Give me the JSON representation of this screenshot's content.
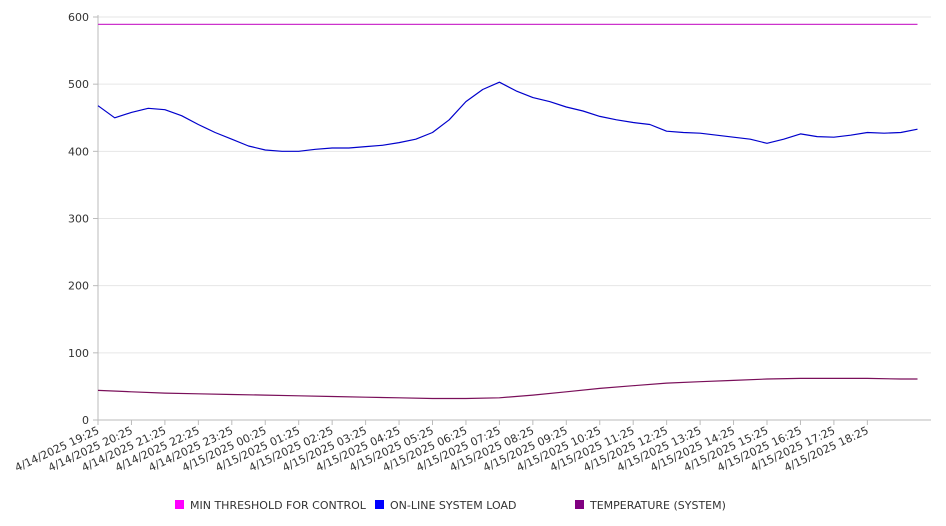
{
  "chart_data": {
    "type": "line",
    "title": "",
    "xlabel": "",
    "ylabel": "",
    "ylim": [
      0,
      600
    ],
    "yticks": [
      0,
      100,
      200,
      300,
      400,
      500,
      600
    ],
    "grid": true,
    "legend_position": "bottom",
    "categories": [
      "4/14/2025 19:25",
      "4/14/2025 20:25",
      "4/14/2025 21:25",
      "4/14/2025 22:25",
      "4/14/2025 23:25",
      "4/15/2025 00:25",
      "4/15/2025 01:25",
      "4/15/2025 02:25",
      "4/15/2025 03:25",
      "4/15/2025 04:25",
      "4/15/2025 05:25",
      "4/15/2025 06:25",
      "4/15/2025 07:25",
      "4/15/2025 08:25",
      "4/15/2025 09:25",
      "4/15/2025 10:25",
      "4/15/2025 11:25",
      "4/15/2025 12:25",
      "4/15/2025 13:25",
      "4/15/2025 14:25",
      "4/15/2025 15:25",
      "4/15/2025 16:25",
      "4/15/2025 17:25",
      "4/15/2025 18:25"
    ],
    "series": [
      {
        "name": "MIN THRESHOLD FOR CONTROL",
        "color": "#cc33cc",
        "legend_color": "#ff00ff",
        "x": [
          "4/14/2025 19:25",
          "4/15/2025 19:55"
        ],
        "values": [
          589,
          589
        ]
      },
      {
        "name": "ON-LINE SYSTEM LOAD",
        "color": "#0000cc",
        "legend_color": "#0000ff",
        "x": [
          "4/14/2025 19:25",
          "4/14/2025 19:55",
          "4/14/2025 20:25",
          "4/14/2025 20:55",
          "4/14/2025 21:25",
          "4/14/2025 21:55",
          "4/14/2025 22:25",
          "4/14/2025 22:55",
          "4/14/2025 23:25",
          "4/14/2025 23:55",
          "4/15/2025 00:25",
          "4/15/2025 00:55",
          "4/15/2025 01:25",
          "4/15/2025 01:55",
          "4/15/2025 02:25",
          "4/15/2025 02:55",
          "4/15/2025 03:25",
          "4/15/2025 03:55",
          "4/15/2025 04:25",
          "4/15/2025 04:55",
          "4/15/2025 05:25",
          "4/15/2025 05:55",
          "4/15/2025 06:25",
          "4/15/2025 06:55",
          "4/15/2025 07:25",
          "4/15/2025 07:55",
          "4/15/2025 08:25",
          "4/15/2025 08:55",
          "4/15/2025 09:25",
          "4/15/2025 09:55",
          "4/15/2025 10:25",
          "4/15/2025 10:55",
          "4/15/2025 11:25",
          "4/15/2025 11:55",
          "4/15/2025 12:25",
          "4/15/2025 12:55",
          "4/15/2025 13:25",
          "4/15/2025 13:55",
          "4/15/2025 14:25",
          "4/15/2025 14:55",
          "4/15/2025 15:25",
          "4/15/2025 15:55",
          "4/15/2025 16:25",
          "4/15/2025 16:55",
          "4/15/2025 17:25",
          "4/15/2025 17:55",
          "4/15/2025 18:25",
          "4/15/2025 18:55",
          "4/15/2025 19:25",
          "4/15/2025 19:55"
        ],
        "values": [
          468,
          450,
          458,
          464,
          462,
          453,
          440,
          428,
          418,
          408,
          402,
          400,
          400,
          403,
          405,
          405,
          407,
          409,
          413,
          418,
          428,
          447,
          474,
          492,
          503,
          490,
          480,
          474,
          466,
          460,
          452,
          447,
          443,
          440,
          430,
          428,
          427,
          424,
          421,
          418,
          412,
          418,
          426,
          422,
          421,
          424,
          428,
          427,
          428,
          433
        ]
      },
      {
        "name": "TEMPERATURE (SYSTEM)",
        "color": "#7a0f5a",
        "legend_color": "#800080",
        "x": [
          "4/14/2025 19:25",
          "4/14/2025 20:25",
          "4/14/2025 21:25",
          "4/14/2025 22:25",
          "4/14/2025 23:25",
          "4/15/2025 00:25",
          "4/15/2025 01:25",
          "4/15/2025 02:25",
          "4/15/2025 03:25",
          "4/15/2025 04:25",
          "4/15/2025 05:25",
          "4/15/2025 06:25",
          "4/15/2025 07:25",
          "4/15/2025 08:25",
          "4/15/2025 09:25",
          "4/15/2025 10:25",
          "4/15/2025 11:25",
          "4/15/2025 12:25",
          "4/15/2025 13:25",
          "4/15/2025 14:25",
          "4/15/2025 15:25",
          "4/15/2025 16:25",
          "4/15/2025 17:25",
          "4/15/2025 18:25",
          "4/15/2025 19:25",
          "4/15/2025 19:55"
        ],
        "values": [
          44,
          42,
          40,
          39,
          38,
          37,
          36,
          35,
          34,
          33,
          32,
          32,
          33,
          37,
          42,
          47,
          51,
          55,
          57,
          59,
          61,
          62,
          62,
          62,
          61,
          61
        ]
      }
    ]
  }
}
